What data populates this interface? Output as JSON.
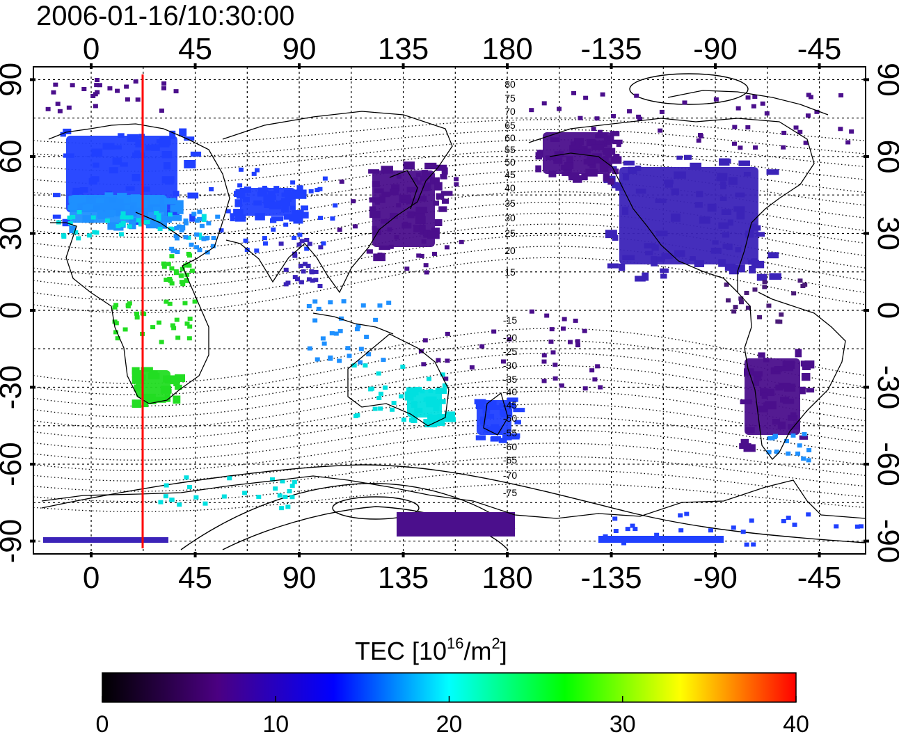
{
  "title": "2006-01-16/10:30:00",
  "axes": {
    "lon_labels": [
      "0",
      "45",
      "90",
      "135",
      "180",
      "-135",
      "-90",
      "-45"
    ],
    "lat_labels": [
      "90",
      "60",
      "30",
      "0",
      "-30",
      "-60",
      "-90"
    ]
  },
  "contour_labels": {
    "north": [
      "80",
      "75",
      "70",
      "65",
      "60",
      "55",
      "50",
      "45",
      "40",
      "35",
      "30",
      "25",
      "20",
      "15"
    ],
    "south": [
      "-15",
      "-20",
      "-25",
      "-30",
      "-35",
      "-40",
      "-45",
      "-50",
      "-55",
      "-60",
      "-65",
      "-70",
      "-75"
    ]
  },
  "local_time_line": {
    "longitude": 22.5,
    "color": "#ff0000"
  },
  "colorbar": {
    "title_text": "TEC  [10",
    "title_sup1": "16",
    "title_mid": "/m",
    "title_sup2": "2",
    "title_end": "]",
    "ticks": [
      "0",
      "10",
      "20",
      "30",
      "40"
    ],
    "stops": [
      "#000000",
      "#4b0082",
      "#0000ff",
      "#00ffff",
      "#00ff00",
      "#ffff00",
      "#ff0000"
    ]
  },
  "tec_colors": {
    "dark": "#4a1a78",
    "purple": "#4b0f8c",
    "indigo": "#3b23b8",
    "blue": "#2040ff",
    "lightblue": "#1e90ff",
    "cyan": "#00e0e0",
    "green": "#22dd22",
    "lime": "#66ee33"
  }
}
